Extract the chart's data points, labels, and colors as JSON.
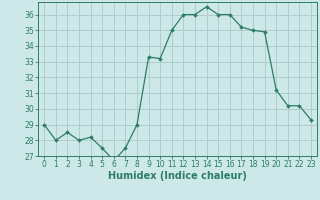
{
  "x": [
    0,
    1,
    2,
    3,
    4,
    5,
    6,
    7,
    8,
    9,
    10,
    11,
    12,
    13,
    14,
    15,
    16,
    17,
    18,
    19,
    20,
    21,
    22,
    23
  ],
  "y": [
    29,
    28,
    28.5,
    28,
    28.2,
    27.5,
    26.7,
    27.5,
    29,
    33.3,
    33.2,
    35,
    36,
    36,
    36.5,
    36,
    36,
    35.2,
    35,
    34.9,
    31.2,
    30.2,
    30.2,
    29.3
  ],
  "line_color": "#2e7d66",
  "marker": "D",
  "marker_size": 1.8,
  "bg_color": "#cce8e8",
  "grid_color": "#b0cccc",
  "xlabel": "Humidex (Indice chaleur)",
  "ylim": [
    27,
    36.8
  ],
  "xlim": [
    -0.5,
    23.5
  ],
  "yticks": [
    27,
    28,
    29,
    30,
    31,
    32,
    33,
    34,
    35,
    36
  ],
  "xticks": [
    0,
    1,
    2,
    3,
    4,
    5,
    6,
    7,
    8,
    9,
    10,
    11,
    12,
    13,
    14,
    15,
    16,
    17,
    18,
    19,
    20,
    21,
    22,
    23
  ],
  "tick_label_fontsize": 5.5,
  "xlabel_fontsize": 7.0,
  "line_width": 0.9,
  "axis_color": "#2e7d66",
  "tick_color": "#2e7d66"
}
